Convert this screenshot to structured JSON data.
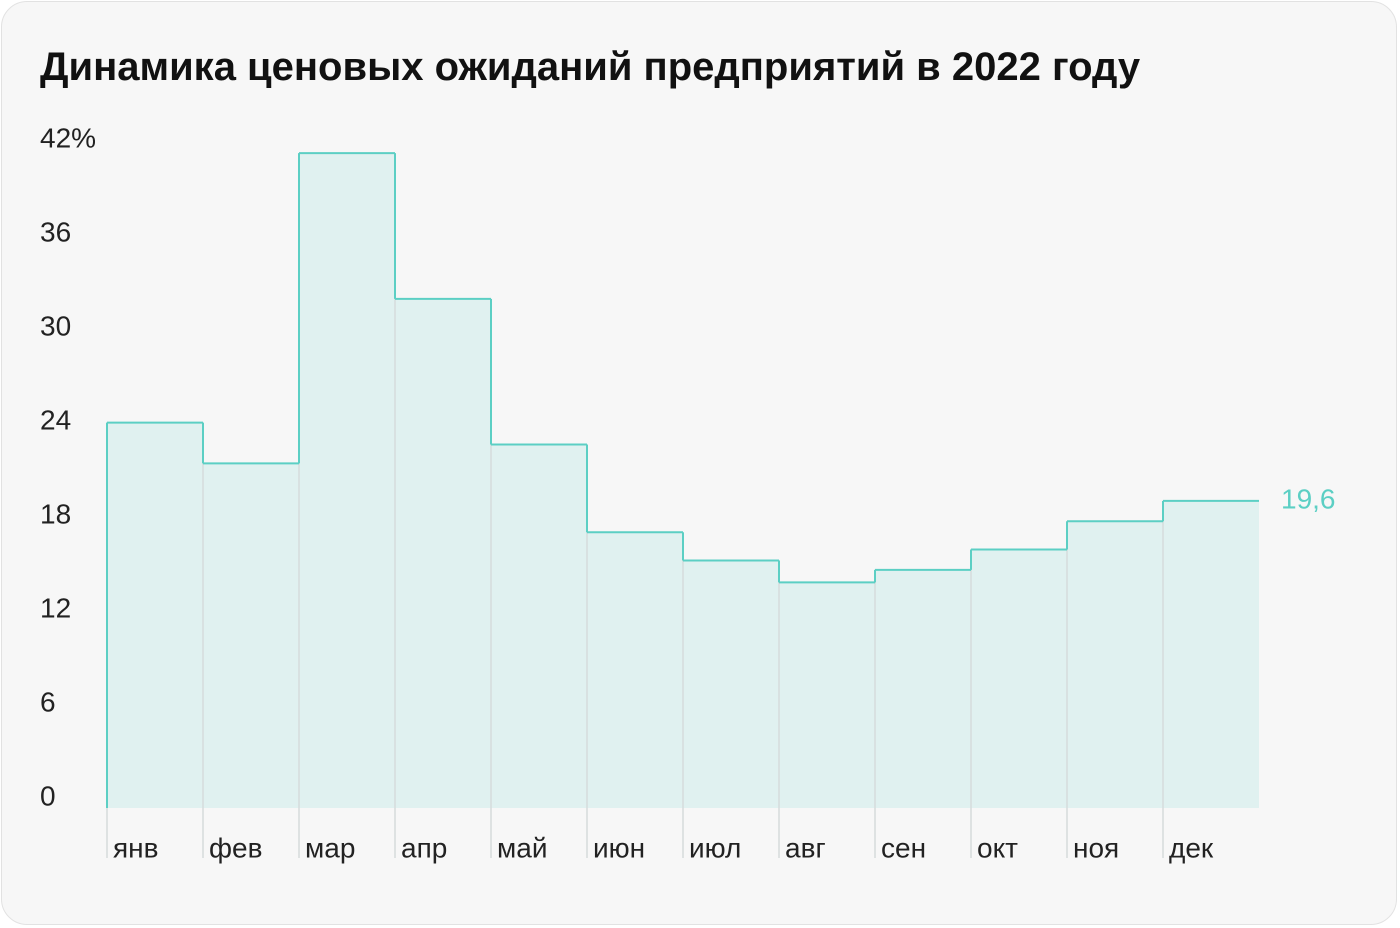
{
  "chart_data": {
    "type": "step-area",
    "title": "Динамика ценовых ожиданий предприятий в 2022 году",
    "categories": [
      "янв",
      "фев",
      "мар",
      "апр",
      "май",
      "июн",
      "июл",
      "авг",
      "сен",
      "окт",
      "ноя",
      "дек"
    ],
    "values": [
      24.6,
      22.0,
      41.8,
      32.5,
      23.2,
      17.6,
      15.8,
      14.4,
      15.2,
      16.5,
      18.3,
      19.6
    ],
    "value_labels": [
      null,
      null,
      null,
      null,
      null,
      null,
      null,
      null,
      null,
      null,
      null,
      "19,6"
    ],
    "color": "#5ccfc4",
    "fill_color": "#e0f1f0",
    "ylim": [
      0,
      42
    ],
    "yticks": [
      0,
      6,
      12,
      18,
      24,
      30,
      36,
      {
        "value": 42,
        "label": "42%"
      }
    ],
    "grid": false
  }
}
